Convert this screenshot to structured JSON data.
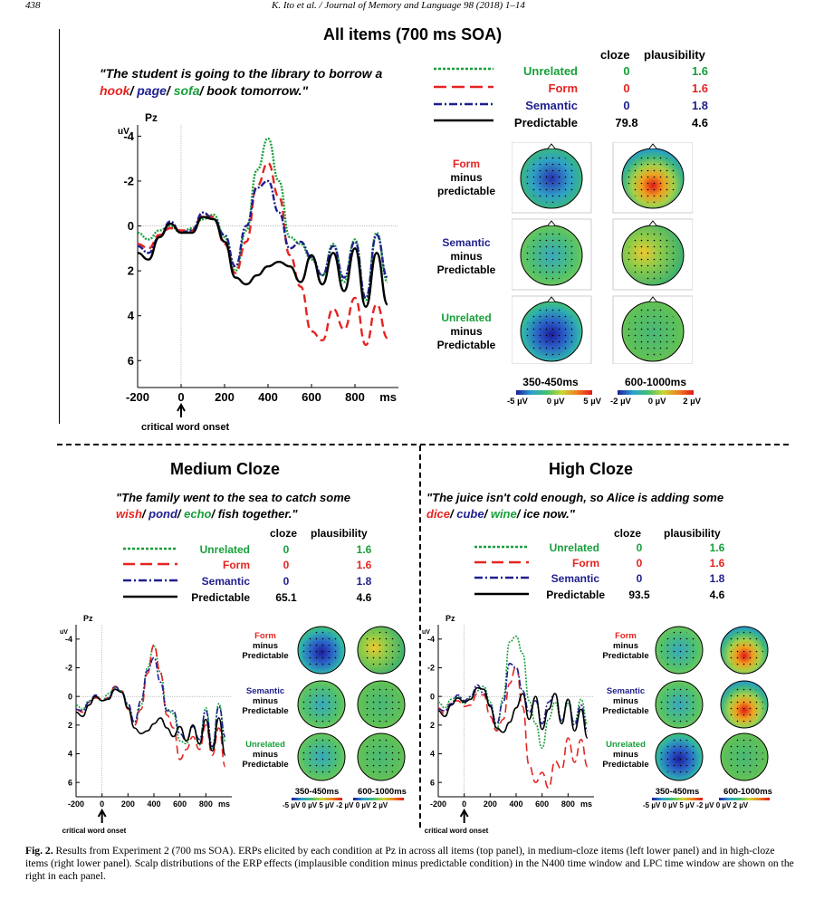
{
  "page_header": {
    "left": "438",
    "center": "K. Ito et al. / Journal of Memory and Language 98 (2018) 1–14"
  },
  "colors": {
    "unrelated": "#179f3a",
    "form": "#e52421",
    "semantic": "#1f1f8f",
    "predictable": "#000000"
  },
  "top": {
    "title": "All items (700 ms SOA)",
    "sentence": {
      "q": "\"",
      "pre": "The student is going to the library to borrow a",
      "w_form": "hook",
      "w_sem": "page",
      "w_unrel": "sofa",
      "post": "book tomorrow.",
      "q2": "\""
    },
    "legend": {
      "cloze_header": "cloze",
      "plaus_header": "plausibility",
      "rows": [
        {
          "label": "Unrelated",
          "cloze": "0",
          "plaus": "1.6"
        },
        {
          "label": "Form",
          "cloze": "0",
          "plaus": "1.6"
        },
        {
          "label": "Semantic",
          "cloze": "0",
          "plaus": "1.8"
        },
        {
          "label": "Predictable",
          "cloze": "79.8",
          "plaus": "4.6"
        }
      ]
    },
    "topo_rows": [
      {
        "a": "Form",
        "b": "minus",
        "c": "predictable"
      },
      {
        "a": "Semantic",
        "b": "minus",
        "c": "Predictable"
      },
      {
        "a": "Unrelated",
        "b": "minus",
        "c": "Predictable"
      }
    ],
    "windows": [
      "350-450ms",
      "600-1000ms"
    ],
    "scale1": [
      "-5 µV",
      "0 µV",
      "5 µV"
    ],
    "scale2": [
      "-2 µV",
      "0 µV",
      "2 µV"
    ]
  },
  "medium": {
    "title": "Medium Cloze",
    "sentence": {
      "q": "\"",
      "pre": "The family went to the sea to catch some",
      "w_form": "wish",
      "w_sem": "pond",
      "w_unrel": "echo",
      "post": "fish together.",
      "q2": "\""
    },
    "legend": {
      "cloze_header": "cloze",
      "plaus_header": "plausibility",
      "rows": [
        {
          "label": "Unrelated",
          "cloze": "0",
          "plaus": "1.6"
        },
        {
          "label": "Form",
          "cloze": "0",
          "plaus": "1.6"
        },
        {
          "label": "Semantic",
          "cloze": "0",
          "plaus": "1.8"
        },
        {
          "label": "Predictable",
          "cloze": "65.1",
          "plaus": "4.6"
        }
      ]
    },
    "topo_rows": [
      {
        "a": "Form",
        "b": "minus",
        "c": "Predictable"
      },
      {
        "a": "Semantic",
        "b": "minus",
        "c": "Predictable"
      },
      {
        "a": "Unrelated",
        "b": "minus",
        "c": "Predictable"
      }
    ],
    "windows": [
      "350-450ms",
      "600-1000ms"
    ],
    "scale": "-5 µV 0 µV 5 µV -2 µV 0 µV 2 µV"
  },
  "high": {
    "title": "High Cloze",
    "sentence": {
      "q": "\"",
      "pre": "The juice isn't cold enough, so Alice is adding some",
      "w_form": "dice",
      "w_sem": "cube",
      "w_unrel": "wine",
      "post": "ice now.",
      "q2": "\""
    },
    "legend": {
      "cloze_header": "cloze",
      "plaus_header": "plausibility",
      "rows": [
        {
          "label": "Unrelated",
          "cloze": "0",
          "plaus": "1.6"
        },
        {
          "label": "Form",
          "cloze": "0",
          "plaus": "1.6"
        },
        {
          "label": "Semantic",
          "cloze": "0",
          "plaus": "1.8"
        },
        {
          "label": "Predictable",
          "cloze": "93.5",
          "plaus": "4.6"
        }
      ]
    },
    "topo_rows": [
      {
        "a": "Form",
        "b": "minus",
        "c": "Predictable"
      },
      {
        "a": "Semantic",
        "b": "minus",
        "c": "Predictable"
      },
      {
        "a": "Unrelated",
        "b": "minus",
        "c": "Predictable"
      }
    ],
    "windows": [
      "350-450ms",
      "600-1000ms"
    ],
    "scale": "-5 µV 0 µV 5 µV -2 µV 0 µV 2 µV"
  },
  "axis": {
    "channel": "Pz",
    "unit": "uV",
    "ms": "ms",
    "onset": "critical word onset"
  },
  "caption": {
    "label": "Fig. 2.",
    "text": "Results from Experiment 2 (700 ms SOA). ERPs elicited by each condition at Pz in across all items (top panel), in medium-cloze items (left lower panel) and in high-cloze items (right lower panel). Scalp distributions of the ERP effects (implausible condition minus predictable condition) in the N400 time window and LPC time window are shown on the right in each panel."
  },
  "chart_data": [
    {
      "type": "line",
      "title": "All items (700 ms SOA)",
      "channel": "Pz",
      "ylabel": "uV",
      "xlabel": "ms",
      "xlim": [
        -200,
        1000
      ],
      "ylim": [
        -4.5,
        7.2
      ],
      "y_inverted": true,
      "x_ticks": [
        -200,
        0,
        200,
        400,
        600,
        800
      ],
      "y_ticks": [
        -4,
        -2,
        0,
        2,
        4,
        6
      ],
      "x": [
        -200,
        -150,
        -100,
        -50,
        0,
        50,
        100,
        150,
        200,
        250,
        300,
        350,
        400,
        450,
        500,
        550,
        600,
        650,
        700,
        750,
        800,
        850,
        900,
        950
      ],
      "series": [
        {
          "name": "Unrelated",
          "values": [
            0.3,
            0.6,
            0.2,
            0.0,
            0.3,
            0.1,
            -0.3,
            -0.5,
            0.5,
            2.0,
            0.2,
            -2.5,
            -3.9,
            -2.0,
            0.5,
            0.8,
            1.5,
            2.2,
            0.8,
            2.5,
            0.6,
            3.3,
            0.3,
            2.5
          ]
        },
        {
          "name": "Form",
          "values": [
            0.8,
            1.0,
            0.4,
            0.1,
            0.2,
            0.2,
            -0.5,
            -0.4,
            0.8,
            2.1,
            0.7,
            -1.8,
            -2.8,
            -1.3,
            1.3,
            2.7,
            4.7,
            5.1,
            3.7,
            4.6,
            3.2,
            5.3,
            3.5,
            5.0
          ]
        },
        {
          "name": "Semantic",
          "values": [
            0.9,
            1.2,
            0.5,
            -0.2,
            0.3,
            0.2,
            -0.6,
            -0.3,
            0.4,
            1.8,
            0.0,
            -1.7,
            -2.0,
            -0.6,
            1.0,
            0.7,
            1.4,
            2.2,
            0.9,
            2.3,
            0.7,
            3.2,
            0.4,
            2.3
          ]
        },
        {
          "name": "Predictable",
          "values": [
            1.2,
            1.5,
            0.5,
            -0.1,
            0.3,
            0.3,
            -0.4,
            -0.3,
            0.7,
            2.3,
            2.6,
            2.2,
            1.8,
            1.6,
            1.8,
            2.5,
            1.3,
            2.6,
            1.2,
            2.9,
            1.0,
            3.6,
            1.2,
            3.5
          ]
        }
      ]
    },
    {
      "type": "line",
      "title": "Medium Cloze",
      "channel": "Pz",
      "ylabel": "uV",
      "xlabel": "ms",
      "xlim": [
        -200,
        1000
      ],
      "ylim": [
        -5,
        7
      ],
      "y_inverted": true,
      "x_ticks": [
        -200,
        0,
        200,
        400,
        600,
        800
      ],
      "y_ticks": [
        -4,
        -2,
        0,
        2,
        4,
        6
      ],
      "x": [
        -200,
        -150,
        -100,
        -50,
        0,
        50,
        100,
        150,
        200,
        250,
        300,
        350,
        400,
        450,
        500,
        550,
        600,
        650,
        700,
        750,
        800,
        850,
        900,
        950
      ],
      "series": [
        {
          "name": "Unrelated",
          "values": [
            0.6,
            0.9,
            0.3,
            0.0,
            0.3,
            -0.2,
            -0.6,
            -0.4,
            0.6,
            1.8,
            0.6,
            -2.0,
            -3.5,
            -1.7,
            0.9,
            1.2,
            3.1,
            3.3,
            2.0,
            3.4,
            0.8,
            3.6,
            0.5,
            3.1
          ]
        },
        {
          "name": "Form",
          "values": [
            0.9,
            1.1,
            0.4,
            0.1,
            0.2,
            0.1,
            -0.7,
            -0.4,
            0.9,
            2.0,
            0.9,
            -1.6,
            -3.6,
            -1.6,
            1.3,
            2.2,
            4.4,
            3.7,
            2.8,
            3.7,
            2.0,
            4.1,
            2.2,
            4.9
          ]
        },
        {
          "name": "Semantic",
          "values": [
            0.9,
            1.0,
            0.4,
            -0.1,
            0.3,
            0.1,
            -0.7,
            -0.3,
            0.5,
            1.8,
            0.3,
            -1.8,
            -2.7,
            -1.0,
            1.0,
            1.0,
            2.6,
            3.1,
            2.1,
            3.0,
            1.0,
            3.5,
            0.7,
            2.8
          ]
        },
        {
          "name": "Predictable",
          "values": [
            1.1,
            1.4,
            0.6,
            0.0,
            0.3,
            0.2,
            -0.5,
            -0.3,
            0.8,
            2.2,
            2.6,
            2.4,
            1.9,
            1.5,
            2.2,
            2.8,
            2.1,
            3.1,
            2.0,
            3.3,
            1.6,
            3.8,
            1.5,
            4.1
          ]
        }
      ]
    },
    {
      "type": "line",
      "title": "High Cloze",
      "channel": "Pz",
      "ylabel": "uV",
      "xlabel": "ms",
      "xlim": [
        -200,
        1000
      ],
      "ylim": [
        -5,
        7
      ],
      "y_inverted": true,
      "x_ticks": [
        -200,
        0,
        200,
        400,
        600,
        800
      ],
      "y_ticks": [
        -4,
        -2,
        0,
        2,
        4,
        6
      ],
      "x": [
        -200,
        -150,
        -100,
        -50,
        0,
        50,
        100,
        150,
        200,
        250,
        300,
        350,
        400,
        450,
        500,
        550,
        600,
        650,
        700,
        750,
        800,
        850,
        900,
        950
      ],
      "series": [
        {
          "name": "Unrelated",
          "values": [
            0.4,
            0.8,
            0.2,
            0.0,
            0.5,
            0.1,
            -0.4,
            -0.7,
            0.4,
            2.3,
            0.1,
            -3.8,
            -4.2,
            -3.0,
            0.3,
            1.9,
            3.6,
            1.6,
            0.4,
            1.7,
            0.5,
            1.8,
            0.2,
            1.9
          ]
        },
        {
          "name": "Form",
          "values": [
            0.8,
            1.2,
            0.4,
            0.3,
            0.7,
            0.6,
            -0.2,
            -0.1,
            1.4,
            2.4,
            1.6,
            -0.9,
            -2.1,
            0.7,
            4.8,
            6.0,
            5.3,
            6.4,
            4.5,
            5.1,
            2.9,
            4.6,
            3.0,
            4.9
          ]
        },
        {
          "name": "Semantic",
          "values": [
            0.9,
            1.0,
            0.5,
            -0.1,
            0.3,
            0.0,
            -0.8,
            -0.2,
            0.6,
            1.9,
            0.4,
            -2.3,
            -2.0,
            -0.4,
            1.1,
            0.3,
            1.9,
            0.4,
            -0.2,
            1.7,
            0.2,
            2.0,
            0.6,
            2.4
          ]
        },
        {
          "name": "Predictable",
          "values": [
            1.0,
            1.4,
            0.6,
            0.1,
            0.4,
            0.2,
            -0.6,
            -0.5,
            0.7,
            2.2,
            2.5,
            1.8,
            0.8,
            -0.2,
            1.6,
            0.0,
            2.3,
            0.9,
            -0.2,
            1.9,
            0.2,
            2.4,
            0.9,
            2.9
          ]
        }
      ]
    }
  ]
}
